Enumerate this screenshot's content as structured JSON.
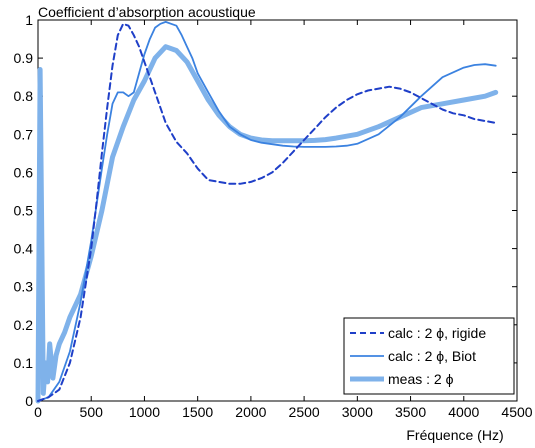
{
  "chart_data": {
    "type": "line",
    "title": "Coefficient d’absorption acoustique",
    "xlabel": "Fréquence (Hz)",
    "ylabel": "",
    "xlim": [
      0,
      4500
    ],
    "ylim": [
      0,
      1
    ],
    "xticks": [
      0,
      500,
      1000,
      1500,
      2000,
      2500,
      3000,
      3500,
      4000,
      4500
    ],
    "yticks": [
      0,
      0.1,
      0.2,
      0.3,
      0.4,
      0.5,
      0.6,
      0.7,
      0.8,
      0.9,
      1
    ],
    "grid": false,
    "legend_position": "bottom-right",
    "series": [
      {
        "name": "calc : 2 ϕ, rigide",
        "style": "dashed",
        "color": "#1f3fc8",
        "x": [
          0,
          100,
          200,
          300,
          400,
          500,
          550,
          600,
          650,
          700,
          750,
          800,
          850,
          900,
          950,
          1000,
          1050,
          1100,
          1200,
          1300,
          1400,
          1500,
          1600,
          1700,
          1800,
          1900,
          2000,
          2100,
          2200,
          2300,
          2400,
          2500,
          2600,
          2700,
          2800,
          2900,
          3000,
          3100,
          3200,
          3300,
          3400,
          3500,
          3600,
          3700,
          3800,
          3900,
          4000,
          4100,
          4200,
          4300
        ],
        "y": [
          0.0,
          0.01,
          0.03,
          0.1,
          0.22,
          0.4,
          0.52,
          0.65,
          0.77,
          0.88,
          0.96,
          0.99,
          0.985,
          0.96,
          0.93,
          0.89,
          0.85,
          0.81,
          0.73,
          0.68,
          0.65,
          0.61,
          0.58,
          0.575,
          0.57,
          0.57,
          0.575,
          0.585,
          0.6,
          0.625,
          0.655,
          0.685,
          0.715,
          0.745,
          0.77,
          0.79,
          0.805,
          0.815,
          0.82,
          0.825,
          0.82,
          0.81,
          0.795,
          0.78,
          0.765,
          0.755,
          0.75,
          0.74,
          0.735,
          0.73
        ]
      },
      {
        "name": "calc : 2 ϕ, Biot",
        "style": "solid",
        "color": "#3b82e0",
        "x": [
          0,
          100,
          200,
          300,
          400,
          500,
          600,
          650,
          700,
          750,
          800,
          850,
          900,
          950,
          1000,
          1050,
          1100,
          1150,
          1200,
          1250,
          1300,
          1350,
          1400,
          1450,
          1500,
          1600,
          1700,
          1800,
          1900,
          2000,
          2100,
          2200,
          2300,
          2400,
          2500,
          2600,
          2700,
          2800,
          2900,
          3000,
          3200,
          3400,
          3600,
          3800,
          4000,
          4100,
          4200,
          4300
        ],
        "y": [
          0.0,
          0.01,
          0.05,
          0.13,
          0.26,
          0.42,
          0.61,
          0.7,
          0.78,
          0.81,
          0.81,
          0.8,
          0.81,
          0.86,
          0.91,
          0.95,
          0.98,
          0.99,
          0.995,
          0.99,
          0.985,
          0.96,
          0.93,
          0.9,
          0.86,
          0.81,
          0.76,
          0.72,
          0.7,
          0.685,
          0.678,
          0.674,
          0.67,
          0.668,
          0.667,
          0.667,
          0.667,
          0.668,
          0.67,
          0.675,
          0.7,
          0.745,
          0.8,
          0.85,
          0.875,
          0.882,
          0.884,
          0.88
        ]
      },
      {
        "name": "meas : 2 ϕ",
        "style": "thick",
        "color": "#7fb2ea",
        "x": [
          0,
          20,
          35,
          50,
          70,
          90,
          110,
          140,
          170,
          200,
          250,
          300,
          400,
          500,
          600,
          700,
          800,
          900,
          1000,
          1100,
          1200,
          1300,
          1400,
          1500,
          1600,
          1700,
          1800,
          1900,
          2000,
          2100,
          2200,
          2300,
          2400,
          2500,
          2600,
          2700,
          2800,
          2900,
          3000,
          3200,
          3400,
          3600,
          3800,
          4000,
          4200,
          4300
        ],
        "y": [
          0.0,
          0.87,
          0.45,
          0.02,
          0.1,
          0.05,
          0.15,
          0.06,
          0.12,
          0.15,
          0.18,
          0.22,
          0.28,
          0.38,
          0.5,
          0.64,
          0.72,
          0.79,
          0.84,
          0.9,
          0.93,
          0.92,
          0.89,
          0.84,
          0.79,
          0.75,
          0.72,
          0.7,
          0.69,
          0.685,
          0.683,
          0.683,
          0.683,
          0.683,
          0.684,
          0.686,
          0.69,
          0.695,
          0.7,
          0.72,
          0.745,
          0.77,
          0.78,
          0.79,
          0.8,
          0.81
        ]
      }
    ]
  }
}
